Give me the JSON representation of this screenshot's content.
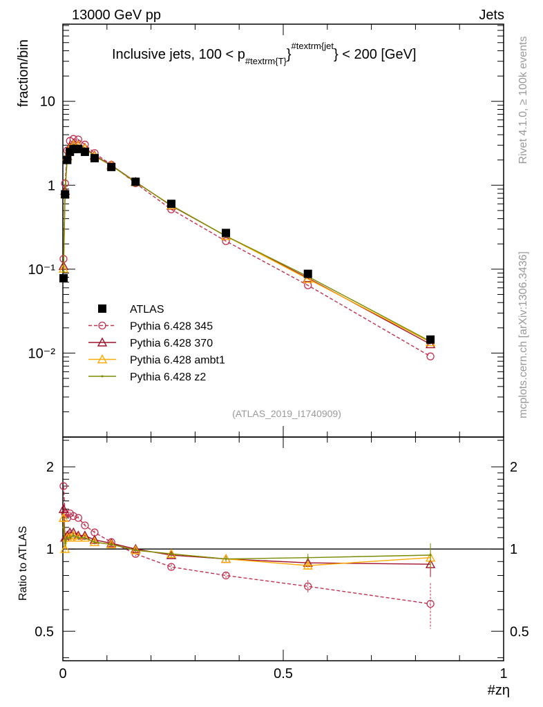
{
  "header": {
    "left": "13000 GeV pp",
    "right": "Jets"
  },
  "side": {
    "rivet": "Rivet 4.1.0, ≥ 100k events",
    "mcplots": "mcplots.cern.ch [arXiv:1306.3436]"
  },
  "watermark": "(ATLAS_2019_I1740909)",
  "chart_data": {
    "type": "line",
    "title_parts": {
      "main": "Inclusive jets, 100 < p",
      "sub": "#textrm{T}",
      "brace": "}",
      "sup": "#textrm{jet",
      "tail": "} < 200 [GeV]"
    },
    "xlabel": "#zη",
    "ylabel": "fraction/bin",
    "ratio_ylabel": "Ratio to ATLAS",
    "xlim": [
      0,
      1
    ],
    "ylim": [
      0.001,
      83
    ],
    "yscale": "log",
    "ratio_ylim": [
      0.39,
      2.57
    ],
    "x_ticks": [
      "0",
      "0.5",
      "1"
    ],
    "y_ticks": [
      "10",
      "1",
      "10⁻¹",
      "10⁻²"
    ],
    "ratio_ticks": [
      "2",
      "1",
      "0.5"
    ],
    "x": [
      0.0015,
      0.005,
      0.01,
      0.016,
      0.024,
      0.035,
      0.05,
      0.072,
      0.11,
      0.165,
      0.246,
      0.37,
      0.556,
      0.834
    ],
    "reference": {
      "name": "ATLAS",
      "values": [
        0.078,
        0.78,
        2.0,
        2.5,
        2.7,
        2.7,
        2.5,
        2.1,
        1.65,
        1.1,
        0.6,
        0.27,
        0.088,
        0.0145
      ]
    },
    "legend_position": "bottom-left",
    "series": [
      {
        "name": "Pythia 6.428 345",
        "color": "#c0304f",
        "marker": "circle",
        "dashed": true,
        "ratio": [
          1.7,
          1.35,
          1.3,
          1.35,
          1.32,
          1.3,
          1.22,
          1.15,
          1.06,
          0.96,
          0.86,
          0.8,
          0.73,
          0.63
        ],
        "ratio_err": [
          0.05,
          0.03,
          0.02,
          0.02,
          0.02,
          0.02,
          0.02,
          0.02,
          0.02,
          0.02,
          0.02,
          0.02,
          0.04,
          0.12
        ]
      },
      {
        "name": "Pythia 6.428 370",
        "color": "#a0102a",
        "marker": "triangle",
        "dashed": false,
        "ratio": [
          1.4,
          1.1,
          1.12,
          1.15,
          1.15,
          1.12,
          1.12,
          1.08,
          1.05,
          1.0,
          0.95,
          0.92,
          0.89,
          0.88
        ],
        "ratio_err": [
          0.05,
          0.03,
          0.02,
          0.02,
          0.02,
          0.02,
          0.02,
          0.02,
          0.02,
          0.02,
          0.02,
          0.02,
          0.03,
          0.09
        ]
      },
      {
        "name": "Pythia 6.428 ambt1",
        "color": "#ffaa00",
        "marker": "triangle",
        "dashed": false,
        "ratio": [
          1.3,
          1.0,
          1.1,
          1.1,
          1.12,
          1.1,
          1.1,
          1.06,
          1.04,
          0.99,
          0.96,
          0.92,
          0.87,
          0.93
        ],
        "ratio_err": [
          0.05,
          0.03,
          0.02,
          0.02,
          0.02,
          0.02,
          0.02,
          0.02,
          0.02,
          0.02,
          0.02,
          0.02,
          0.03,
          0.08
        ]
      },
      {
        "name": "Pythia 6.428 z2",
        "color": "#7a8a00",
        "marker": "dot",
        "dashed": false,
        "ratio": [
          1.2,
          1.05,
          1.1,
          1.1,
          1.12,
          1.1,
          1.1,
          1.06,
          1.04,
          0.99,
          0.96,
          0.92,
          0.93,
          0.95
        ],
        "ratio_err": [
          0.05,
          0.03,
          0.02,
          0.02,
          0.02,
          0.02,
          0.02,
          0.02,
          0.02,
          0.02,
          0.02,
          0.02,
          0.03,
          0.1
        ]
      }
    ]
  }
}
